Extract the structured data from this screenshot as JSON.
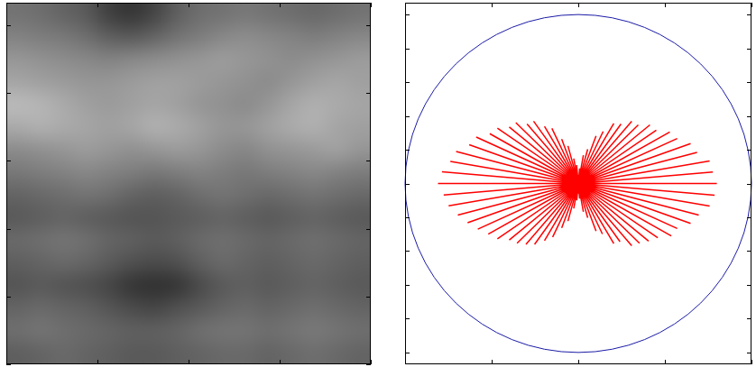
{
  "chart_data": [
    {
      "type": "heatmap",
      "color": "gray",
      "tick_labels": false,
      "xlim": [
        0,
        16
      ],
      "ylim": [
        0,
        16
      ],
      "xticks": [
        0,
        4,
        8,
        12,
        16
      ],
      "yticks": [
        0,
        3,
        6,
        9,
        12,
        15
      ],
      "cells": [
        [
          115,
          110,
          100,
          90,
          65,
          55,
          70,
          95,
          110,
          115,
          120,
          115,
          110,
          105,
          110,
          115
        ],
        [
          130,
          125,
          120,
          110,
          95,
          90,
          100,
          115,
          125,
          135,
          140,
          135,
          130,
          125,
          130,
          135
        ],
        [
          150,
          145,
          140,
          135,
          130,
          135,
          140,
          145,
          150,
          155,
          150,
          145,
          140,
          145,
          150,
          155
        ],
        [
          165,
          160,
          155,
          150,
          150,
          155,
          160,
          160,
          155,
          150,
          145,
          140,
          150,
          160,
          165,
          160
        ],
        [
          185,
          180,
          170,
          160,
          155,
          160,
          165,
          160,
          150,
          145,
          140,
          150,
          165,
          175,
          170,
          165
        ],
        [
          170,
          175,
          170,
          165,
          160,
          165,
          175,
          170,
          160,
          150,
          150,
          160,
          170,
          175,
          165,
          160
        ],
        [
          140,
          145,
          150,
          155,
          150,
          145,
          150,
          155,
          150,
          140,
          135,
          145,
          150,
          155,
          160,
          150
        ],
        [
          120,
          125,
          130,
          135,
          130,
          125,
          120,
          125,
          130,
          125,
          120,
          125,
          130,
          135,
          130,
          125
        ],
        [
          100,
          105,
          110,
          115,
          110,
          100,
          95,
          100,
          110,
          115,
          110,
          105,
          110,
          115,
          110,
          105
        ],
        [
          90,
          95,
          100,
          95,
          90,
          85,
          85,
          90,
          95,
          100,
          95,
          90,
          95,
          100,
          95,
          90
        ],
        [
          105,
          110,
          115,
          110,
          100,
          95,
          90,
          95,
          105,
          110,
          105,
          100,
          105,
          110,
          105,
          100
        ],
        [
          95,
          100,
          105,
          100,
          90,
          80,
          75,
          80,
          95,
          105,
          100,
          95,
          100,
          105,
          100,
          95
        ],
        [
          85,
          90,
          85,
          80,
          70,
          55,
          50,
          55,
          75,
          90,
          95,
          90,
          95,
          100,
          95,
          90
        ],
        [
          100,
          105,
          100,
          95,
          85,
          75,
          70,
          80,
          90,
          100,
          105,
          100,
          105,
          110,
          105,
          100
        ],
        [
          110,
          115,
          110,
          105,
          100,
          95,
          95,
          100,
          110,
          115,
          115,
          110,
          115,
          120,
          115,
          110
        ],
        [
          95,
          100,
          105,
          100,
          95,
          90,
          90,
          95,
          100,
          105,
          105,
          100,
          105,
          110,
          105,
          100
        ]
      ]
    },
    {
      "type": "radial",
      "color": "#ff0000",
      "tick_labels": false,
      "xlim": [
        -1,
        1
      ],
      "ylim": [
        -1.07,
        1.07
      ],
      "xticks": [
        -1,
        -0.5,
        0,
        0.5,
        1
      ],
      "yticks": [
        -1,
        -0.8,
        -0.6,
        -0.4,
        -0.2,
        0,
        0.2,
        0.4,
        0.6,
        0.8,
        1
      ],
      "circle": {
        "radius": 1,
        "color": "#1a1aa6"
      },
      "angles": [
        0,
        5,
        10,
        15,
        20,
        25,
        30,
        35,
        40,
        45,
        50,
        55,
        60,
        65,
        70,
        75,
        80,
        85,
        90,
        95,
        100,
        105,
        110,
        115,
        120,
        125,
        130,
        135,
        140,
        145,
        150,
        155,
        160,
        165,
        170,
        175,
        180,
        185,
        190,
        195,
        200,
        205,
        210,
        215,
        220,
        225,
        230,
        235,
        240,
        245,
        250,
        255,
        260,
        265,
        270,
        275,
        280,
        285,
        290,
        295,
        300,
        305,
        310,
        315,
        320,
        325,
        330,
        335,
        340,
        345,
        350,
        355
      ],
      "values": [
        0.8,
        0.78,
        0.77,
        0.71,
        0.69,
        0.63,
        0.61,
        0.55,
        0.54,
        0.49,
        0.48,
        0.43,
        0.41,
        0.34,
        0.3,
        0.21,
        0.17,
        0.09,
        0.05,
        0.11,
        0.15,
        0.23,
        0.28,
        0.36,
        0.39,
        0.45,
        0.46,
        0.51,
        0.52,
        0.57,
        0.59,
        0.65,
        0.67,
        0.73,
        0.75,
        0.79,
        0.81,
        0.78,
        0.76,
        0.72,
        0.68,
        0.64,
        0.6,
        0.57,
        0.52,
        0.5,
        0.47,
        0.44,
        0.39,
        0.35,
        0.28,
        0.23,
        0.15,
        0.1,
        0.06,
        0.09,
        0.17,
        0.21,
        0.3,
        0.33,
        0.41,
        0.42,
        0.48,
        0.5,
        0.53,
        0.56,
        0.62,
        0.63,
        0.69,
        0.72,
        0.77,
        0.79
      ]
    }
  ]
}
